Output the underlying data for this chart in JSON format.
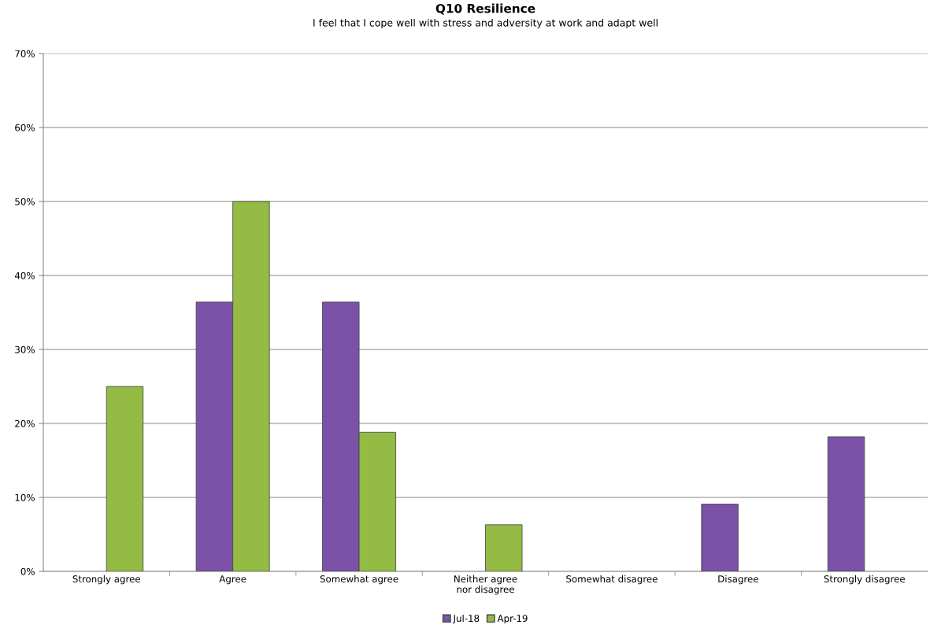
{
  "chart_data": {
    "type": "bar",
    "title": "Q10 Resilience",
    "subtitle": "I feel that I cope well with stress and adversity at work and adapt well",
    "categories": [
      "Strongly agree",
      "Agree",
      "Somewhat agree",
      "Neither agree\nnor disagree",
      "Somewhat disagree",
      "Disagree",
      "Strongly disagree"
    ],
    "series": [
      {
        "name": "Jul-18",
        "color": "#7b52a8",
        "values": [
          null,
          36.4,
          36.4,
          null,
          null,
          9.1,
          18.2
        ]
      },
      {
        "name": "Apr-19",
        "color": "#94bb44",
        "values": [
          25,
          50,
          18.8,
          6.3,
          null,
          null,
          null
        ]
      }
    ],
    "ylim": [
      0,
      70
    ],
    "yticks": [
      {
        "value": 0,
        "label": "0%"
      },
      {
        "value": 10,
        "label": "10%"
      },
      {
        "value": 20,
        "label": "20%"
      },
      {
        "value": 30,
        "label": "30%"
      },
      {
        "value": 40,
        "label": "40%"
      },
      {
        "value": 50,
        "label": "50%"
      },
      {
        "value": 60,
        "label": "60%"
      },
      {
        "value": 70,
        "label": "70%"
      }
    ],
    "grid": "y",
    "legend": "bottom"
  }
}
